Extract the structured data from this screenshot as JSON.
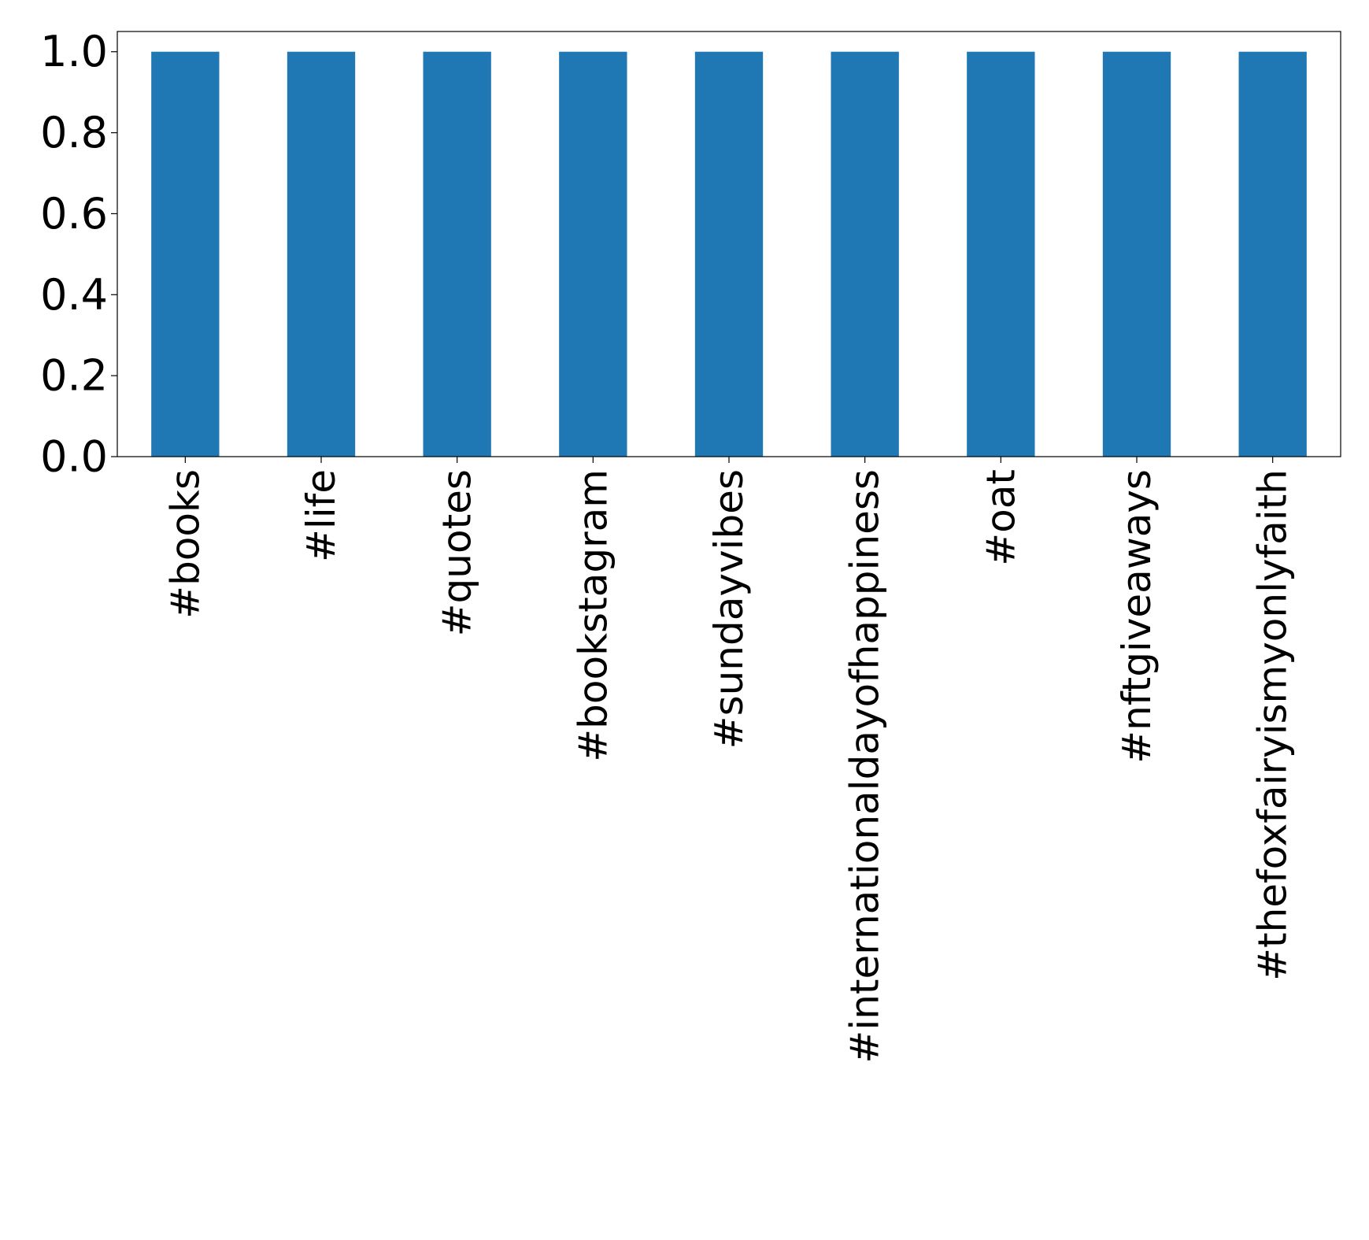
{
  "chart_data": {
    "type": "bar",
    "title": "",
    "xlabel": "",
    "ylabel": "",
    "categories": [
      "#books",
      "#life",
      "#quotes",
      "#bookstagram",
      "#sundayvibes",
      "#internationaldayofhappiness",
      "#oat",
      "#nftgiveaways",
      "#thefoxfairyismyonlyfaith"
    ],
    "values": [
      1.0,
      1.0,
      1.0,
      1.0,
      1.0,
      1.0,
      1.0,
      1.0,
      1.0
    ],
    "ylim": [
      0,
      1.05
    ],
    "yticks": [
      "0.0",
      "0.2",
      "0.4",
      "0.6",
      "0.8",
      "1.0"
    ],
    "grid": false,
    "legend": "none",
    "bar_color": "#1f77b4"
  }
}
